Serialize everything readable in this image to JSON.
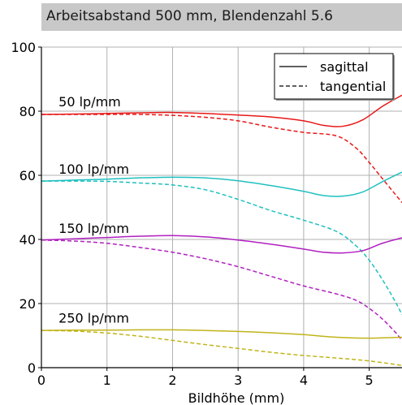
{
  "chart_data": {
    "type": "line",
    "title": "Arbeitsabstand 500 mm, Blendenzahl 5.6",
    "xlabel": "Bildhöhe (mm)",
    "ylabel": "",
    "xlim": [
      0,
      5.5
    ],
    "ylim": [
      0,
      100
    ],
    "xticks": [
      0,
      1,
      2,
      3,
      4,
      5
    ],
    "yticks": [
      0,
      20,
      40,
      60,
      80,
      100
    ],
    "grid": true,
    "legend": {
      "placement": "top-right",
      "entries": [
        {
          "label": "sagittal",
          "style": "solid"
        },
        {
          "label": "tangential",
          "style": "dashed"
        }
      ]
    },
    "groups": [
      {
        "label": "50 lp/mm",
        "label_at": [
          0.2,
          82
        ],
        "color": "#e81818",
        "series": [
          {
            "name": "sagittal",
            "style": "solid",
            "x": [
              0,
              0.5,
              1,
              1.5,
              2,
              2.5,
              3,
              3.5,
              4,
              4.3,
              4.6,
              4.9,
              5.2,
              5.5
            ],
            "y": [
              79,
              79.1,
              79.3,
              79.5,
              79.6,
              79.3,
              78.8,
              78.2,
              77,
              75.6,
              75.3,
              77.3,
              81.5,
              85
            ]
          },
          {
            "name": "tangential",
            "style": "dashed",
            "x": [
              0,
              0.5,
              1,
              1.5,
              2,
              2.5,
              3,
              3.5,
              4,
              4.5,
              4.8,
              5,
              5.2,
              5.4,
              5.5
            ],
            "y": [
              79,
              79,
              79,
              79,
              78.7,
              78.1,
              77,
              75,
              73.4,
              72.3,
              68.5,
              64,
              59,
              54,
              51.5
            ]
          }
        ]
      },
      {
        "label": "100 lp/mm",
        "label_at": [
          0.2,
          61
        ],
        "color": "#20c0c0",
        "series": [
          {
            "name": "sagittal",
            "style": "solid",
            "x": [
              0,
              0.5,
              1,
              1.5,
              2,
              2.5,
              3,
              3.5,
              4,
              4.3,
              4.6,
              4.9,
              5.2,
              5.5
            ],
            "y": [
              58.2,
              58.5,
              58.8,
              59.2,
              59.4,
              59.2,
              58.3,
              56.8,
              55,
              53.7,
              53.5,
              54.8,
              58,
              61
            ]
          },
          {
            "name": "tangential",
            "style": "dashed",
            "x": [
              0,
              0.5,
              1,
              1.5,
              2,
              2.5,
              3,
              3.5,
              4,
              4.5,
              4.8,
              5,
              5.2,
              5.4,
              5.5
            ],
            "y": [
              58.2,
              58.2,
              58.1,
              57.6,
              57,
              55.5,
              52.5,
              49,
              46,
              42.5,
              38,
              33.5,
              27.5,
              20.5,
              16.5
            ]
          }
        ]
      },
      {
        "label": "150 lp/mm",
        "label_at": [
          0.2,
          42.5
        ],
        "color": "#b020c0",
        "series": [
          {
            "name": "sagittal",
            "style": "solid",
            "x": [
              0,
              0.5,
              1,
              1.5,
              2,
              2.5,
              3,
              3.5,
              4,
              4.3,
              4.6,
              4.9,
              5.2,
              5.5
            ],
            "y": [
              39.8,
              40.2,
              40.6,
              41,
              41.2,
              40.8,
              39.8,
              38.5,
              37,
              36,
              35.8,
              36.5,
              38.8,
              40.5
            ]
          },
          {
            "name": "tangential",
            "style": "dashed",
            "x": [
              0,
              0.5,
              1,
              1.5,
              2,
              2.5,
              3,
              3.5,
              4,
              4.5,
              4.8,
              5,
              5.2,
              5.4,
              5.5
            ],
            "y": [
              39.8,
              39.5,
              38.8,
              37.5,
              36,
              34,
              31.5,
              28.5,
              25.5,
              23,
              21,
              18.5,
              15.2,
              11,
              8.5
            ]
          }
        ]
      },
      {
        "label": "250 lp/mm",
        "label_at": [
          0.2,
          14.5
        ],
        "color": "#c0b418",
        "series": [
          {
            "name": "sagittal",
            "style": "solid",
            "x": [
              0,
              0.5,
              1,
              1.5,
              2,
              2.5,
              3,
              3.5,
              4,
              4.5,
              5,
              5.5
            ],
            "y": [
              11.6,
              11.7,
              11.7,
              11.8,
              11.8,
              11.6,
              11.3,
              10.9,
              10.3,
              9.5,
              9.2,
              9.5
            ]
          },
          {
            "name": "tangential",
            "style": "dashed",
            "x": [
              0,
              0.5,
              1,
              1.5,
              2,
              2.5,
              3,
              3.5,
              4,
              4.5,
              5,
              5.5
            ],
            "y": [
              11.6,
              11.4,
              10.8,
              9.8,
              8.5,
              7.2,
              6,
              4.8,
              3.8,
              3,
              2.1,
              0.7
            ]
          }
        ]
      }
    ]
  }
}
